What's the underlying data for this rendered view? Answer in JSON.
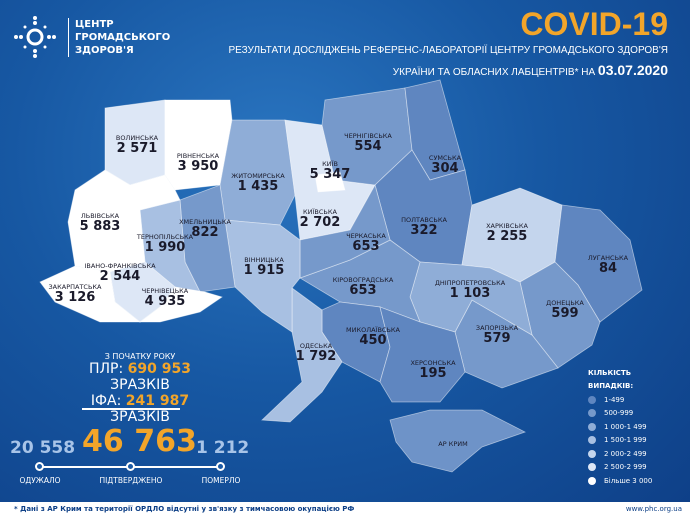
{
  "header": {
    "org_lines": [
      "ЦЕНТР",
      "ГРОМАДСЬКОГО",
      "ЗДОРОВ'Я"
    ],
    "title": "COVID-19",
    "subtitle_1": "РЕЗУЛЬТАТИ ДОСЛІДЖЕНЬ РЕФЕРЕНС-ЛАБОРАТОРІЇ ЦЕНТРУ ГРОМАДСЬКОГО ЗДОРОВ'Я",
    "subtitle_2": "УКРАЇНИ ТА ОБЛАСНИХ ЛАБЦЕНТРІВ* НА",
    "date": "03.07.2020"
  },
  "regions": [
    {
      "name": "ВОЛИНСЬКА",
      "cases": "2 571"
    },
    {
      "name": "РІВНЕНСЬКА",
      "cases": "3 950"
    },
    {
      "name": "ЖИТОМИРСЬКА",
      "cases": "1 435"
    },
    {
      "name": "КИЇВ",
      "cases": "5 347"
    },
    {
      "name": "КИЇВСЬКА",
      "cases": "2 702"
    },
    {
      "name": "ЧЕРНІГІВСЬКА",
      "cases": "554"
    },
    {
      "name": "СУМСЬКА",
      "cases": "304"
    },
    {
      "name": "ПОЛТАВСЬКА",
      "cases": "322"
    },
    {
      "name": "ХАРКІВСЬКА",
      "cases": "2 255"
    },
    {
      "name": "ЛУГАНСЬКА",
      "cases": "84"
    },
    {
      "name": "ДОНЕЦЬКА",
      "cases": "599"
    },
    {
      "name": "ЗАПОРІЗЬКА",
      "cases": "579"
    },
    {
      "name": "ДНІПРОПЕТРОВСЬКА",
      "cases": "1 103"
    },
    {
      "name": "КІРОВОГРАДСЬКА",
      "cases": "653"
    },
    {
      "name": "ЧЕРКАСЬКА",
      "cases": "653"
    },
    {
      "name": "МИКОЛАЇВСЬКА",
      "cases": "450"
    },
    {
      "name": "ХЕРСОНСЬКА",
      "cases": "195"
    },
    {
      "name": "ОДЕСЬКА",
      "cases": "1 792"
    },
    {
      "name": "ВІННИЦЬКА",
      "cases": "1 915"
    },
    {
      "name": "ХМЕЛЬНИЦЬКА",
      "cases": "822"
    },
    {
      "name": "ТЕРНОПІЛЬСЬКА",
      "cases": "1 990"
    },
    {
      "name": "ЛЬВІВСЬКА",
      "cases": "5 883"
    },
    {
      "name": "ІВАНО-ФРАНКІВСЬКА",
      "cases": "2 544"
    },
    {
      "name": "ЗАКАРПАТСЬКА",
      "cases": "3 126"
    },
    {
      "name": "ЧЕРНІВЕЦЬКА",
      "cases": "4 935"
    },
    {
      "name": "АР КРИМ",
      "cases": ""
    }
  ],
  "tests": {
    "since": "З ПОЧАТКУ РОКУ",
    "pcr_label": "ПЛР:",
    "pcr_value": "690 953",
    "ifa_label": "ІФА:",
    "ifa_value": "241 987",
    "unit": "ЗРАЗКІВ"
  },
  "totals": {
    "recovered": "20 558",
    "confirmed": "46 763",
    "deaths": "1 212",
    "recovered_label": "ОДУЖАЛО",
    "confirmed_label": "ПІДТВЕРДЖЕНО",
    "deaths_label": "ПОМЕРЛО"
  },
  "legend": {
    "title_1": "КІЛЬКІСТЬ",
    "title_2": "ВИПАДКІВ:",
    "items": [
      {
        "label": "1-499",
        "color": "#5f86c0"
      },
      {
        "label": "500-999",
        "color": "#7699cb"
      },
      {
        "label": "1 000-1 499",
        "color": "#8fadd7"
      },
      {
        "label": "1 500-1 999",
        "color": "#a8c0e2"
      },
      {
        "label": "2 000-2 499",
        "color": "#c4d5ed"
      },
      {
        "label": "2 500-2 999",
        "color": "#dde7f6"
      },
      {
        "label": "Більше 3 000",
        "color": "#ffffff"
      }
    ]
  },
  "footer": {
    "note": "* Дані з АР Крим та території ОРДЛО відсутні у зв'язку з тимчасовою окупацією РФ",
    "url": "www.phc.org.ua"
  }
}
